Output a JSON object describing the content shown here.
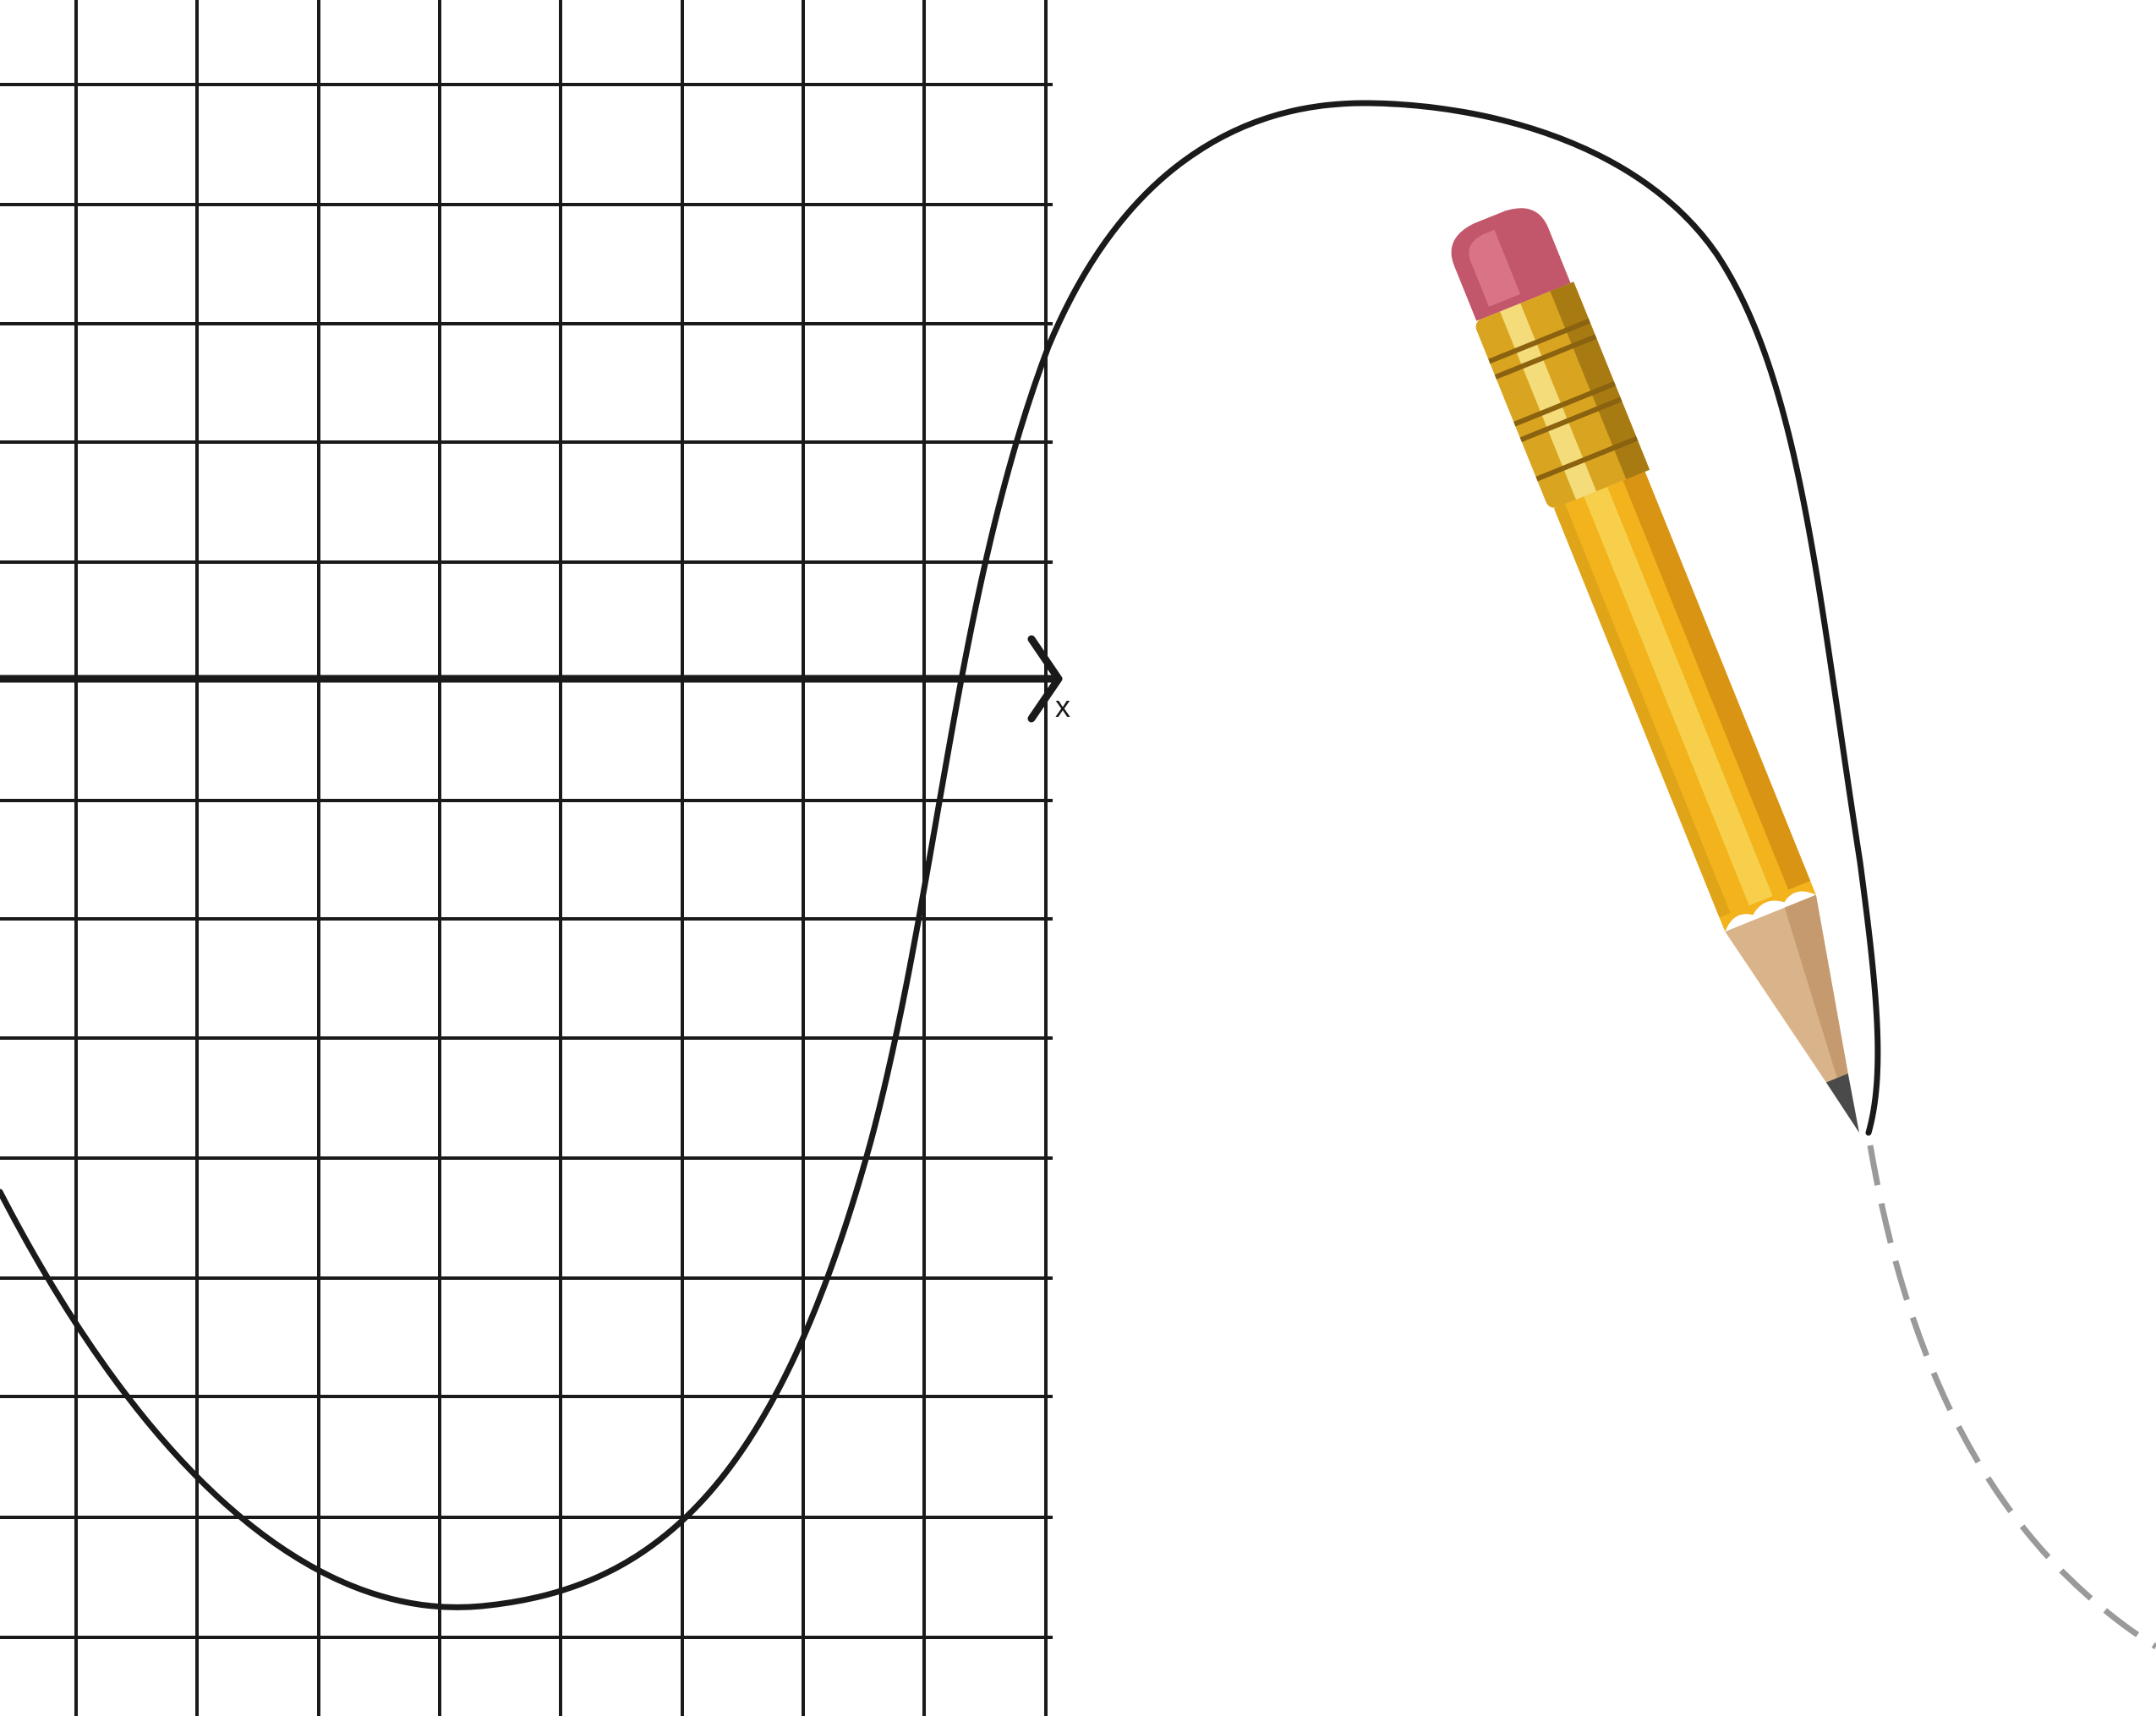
{
  "axis": {
    "x_label": "x"
  },
  "colors": {
    "background": "#ffffff",
    "grid_line": "#1a1a1a",
    "axis": "#1a1a1a",
    "curve": "#1a1a1a",
    "projected_curve": "#9a9a9a",
    "pencil_body": "#f2b31c",
    "pencil_ferrule": "#d9a520",
    "pencil_eraser": "#c2566b",
    "pencil_wood": "#d9b48a",
    "pencil_lead": "#4a4a4a"
  },
  "figure": {
    "grid": true,
    "curve_style_drawn": "solid",
    "curve_style_projected": "dashed",
    "illustration": "pencil-drawing-wave"
  }
}
